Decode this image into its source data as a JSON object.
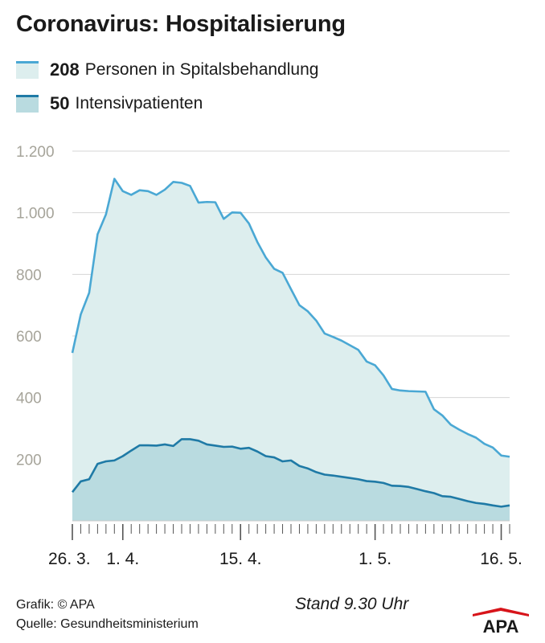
{
  "title": "Coronavirus: Hospitalisierung",
  "legend": [
    {
      "value": "208",
      "label": "Personen in Spitalsbehandlung",
      "line_color": "#4aa8d4",
      "fill_color": "#ddeeee"
    },
    {
      "value": "50",
      "label": "Intensivpatienten",
      "line_color": "#1f7aa6",
      "fill_color": "#b9dbe0"
    }
  ],
  "footer": {
    "credit": "Grafik: © APA",
    "source": "Quelle: Gesundheitsministerium",
    "stand": "Stand 9.30 Uhr"
  },
  "logo": {
    "text": "APA",
    "color": "#d7141a"
  },
  "chart_data": {
    "type": "area",
    "ylim": [
      0,
      1200
    ],
    "yticks": [
      200,
      400,
      600,
      800,
      1000,
      1200
    ],
    "ytick_labels": [
      "200",
      "400",
      "600",
      "800",
      "1.000",
      "1.200"
    ],
    "grid": true,
    "xtick_labels": [
      {
        "index": 0,
        "label": "26. 3."
      },
      {
        "index": 6,
        "label": "1. 4."
      },
      {
        "index": 20,
        "label": "15. 4."
      },
      {
        "index": 36,
        "label": "1. 5."
      },
      {
        "index": 51,
        "label": "16. 5."
      }
    ],
    "series": [
      {
        "values": [
          545,
          670,
          740,
          930,
          995,
          1110,
          1070,
          1058,
          1073,
          1070,
          1058,
          1075,
          1100,
          1097,
          1087,
          1033,
          1035,
          1034,
          980,
          1001,
          1000,
          965,
          905,
          855,
          818,
          805,
          752,
          700,
          680,
          650,
          608,
          597,
          585,
          570,
          555,
          517,
          505,
          472,
          428,
          423,
          421,
          420,
          419,
          362,
          342,
          312,
          296,
          282,
          270,
          250,
          238,
          212,
          208
        ],
        "line_color": "#4aa8d4",
        "fill_color": "#ddeeee"
      },
      {
        "values": [
          93,
          128,
          135,
          185,
          193,
          196,
          210,
          228,
          245,
          245,
          244,
          248,
          243,
          265,
          265,
          260,
          248,
          244,
          240,
          241,
          234,
          237,
          225,
          210,
          206,
          193,
          196,
          178,
          170,
          158,
          150,
          147,
          143,
          139,
          135,
          129,
          127,
          123,
          114,
          113,
          110,
          103,
          96,
          90,
          80,
          78,
          71,
          64,
          58,
          55,
          50,
          46,
          50
        ],
        "line_color": "#1f7aa6",
        "fill_color": "#b9dbe0"
      }
    ]
  }
}
